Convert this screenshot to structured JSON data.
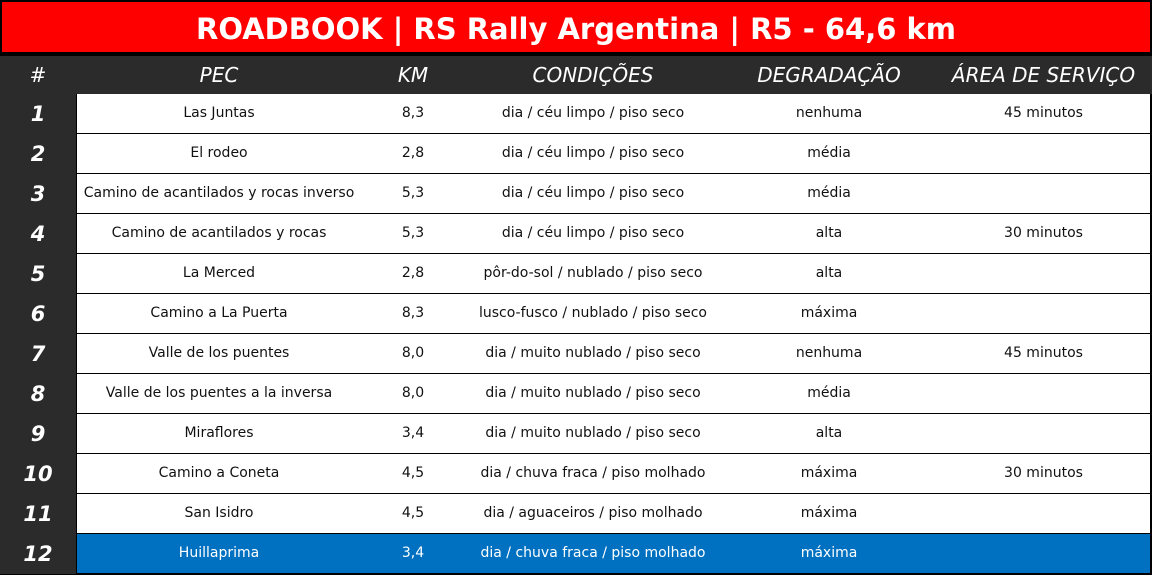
{
  "title": "ROADBOOK | RS Rally Argentina | R5 - 64,6 km",
  "headers": {
    "num": "#",
    "pec": "PEC",
    "km": "KM",
    "cond": "CONDIÇÕES",
    "deg": "DEGRADAÇÃO",
    "area": "ÁREA DE SERVIÇO"
  },
  "rows": [
    {
      "num": "1",
      "pec": "Las Juntas",
      "km": "8,3",
      "cond": "dia / céu limpo / piso seco",
      "deg": "nenhuma",
      "area": "45 minutos"
    },
    {
      "num": "2",
      "pec": "El rodeo",
      "km": "2,8",
      "cond": "dia / céu limpo / piso seco",
      "deg": "média",
      "area": ""
    },
    {
      "num": "3",
      "pec": "Camino de acantilados y rocas inverso",
      "km": "5,3",
      "cond": "dia / céu limpo / piso seco",
      "deg": "média",
      "area": ""
    },
    {
      "num": "4",
      "pec": "Camino de acantilados y rocas",
      "km": "5,3",
      "cond": "dia / céu limpo / piso seco",
      "deg": "alta",
      "area": "30 minutos"
    },
    {
      "num": "5",
      "pec": "La Merced",
      "km": "2,8",
      "cond": "pôr-do-sol / nublado / piso seco",
      "deg": "alta",
      "area": ""
    },
    {
      "num": "6",
      "pec": "Camino a La Puerta",
      "km": "8,3",
      "cond": "lusco-fusco / nublado / piso seco",
      "deg": "máxima",
      "area": ""
    },
    {
      "num": "7",
      "pec": "Valle de los puentes",
      "km": "8,0",
      "cond": "dia / muito nublado / piso seco",
      "deg": "nenhuma",
      "area": "45 minutos"
    },
    {
      "num": "8",
      "pec": "Valle de los puentes a la inversa",
      "km": "8,0",
      "cond": "dia / muito nublado / piso seco",
      "deg": "média",
      "area": ""
    },
    {
      "num": "9",
      "pec": "Miraflores",
      "km": "3,4",
      "cond": "dia / muito nublado / piso seco",
      "deg": "alta",
      "area": ""
    },
    {
      "num": "10",
      "pec": "Camino a Coneta",
      "km": "4,5",
      "cond": "dia / chuva fraca / piso molhado",
      "deg": "máxima",
      "area": "30 minutos"
    },
    {
      "num": "11",
      "pec": "San Isidro",
      "km": "4,5",
      "cond": "dia / aguaceiros / piso molhado",
      "deg": "máxima",
      "area": ""
    },
    {
      "num": "12",
      "pec": "Huillaprima",
      "km": "3,4",
      "cond": "dia / chuva fraca / piso molhado",
      "deg": "máxima",
      "area": ""
    }
  ],
  "colors": {
    "title_bg": "#ff0000",
    "header_bg": "#2b2b2b",
    "highlight_bg": "#0070c0"
  }
}
